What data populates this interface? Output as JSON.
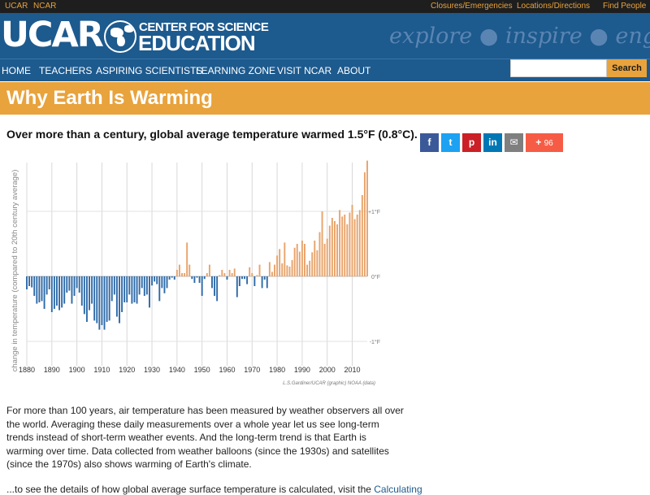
{
  "topbar": {
    "links": [
      "UCAR",
      "NCAR"
    ],
    "right_links": [
      "Closures/Emergencies",
      "Locations/Directions",
      "Find People"
    ]
  },
  "brand": {
    "ucar": "UCAR",
    "line1": "CENTER FOR SCIENCE",
    "line2": "EDUCATION",
    "tagline": "explore ● inspire ● engage"
  },
  "nav": {
    "items": [
      "HOME",
      "TEACHERS",
      "ASPIRING SCIENTISTS",
      "LEARNING ZONE",
      "VISIT NCAR",
      "ABOUT"
    ],
    "search_value": "",
    "search_label": "Search"
  },
  "page": {
    "title": "Why Earth Is Warming",
    "subtitle": "Over more than a century, global average temperature warmed 1.5°F (0.8°C).",
    "paragraph": "For more than 100 years, air temperature has been measured by weather observers all over the world. Averaging these daily measurements over a whole year let us see long-term trends instead of short-term weather events.  And the long-term trend is that Earth is warming over time. Data collected from weather balloons (since the 1930s) and satellites (since the 1970s) also shows warming of Earth's climate.",
    "paragraph2_start": "...to see the details of how global average surface temperature is calculated, visit the ",
    "paragraph2_link": "Calculating"
  },
  "share": {
    "buttons": [
      {
        "icon": "facebook-icon",
        "glyph": "f",
        "color": "#3b5998"
      },
      {
        "icon": "twitter-icon",
        "glyph": "t",
        "color": "#1da1f2"
      },
      {
        "icon": "pinterest-icon",
        "glyph": "p",
        "color": "#cb2027"
      },
      {
        "icon": "linkedin-icon",
        "glyph": "in",
        "color": "#0077b5"
      },
      {
        "icon": "email-icon",
        "glyph": "✉",
        "color": "#7f7f7f"
      }
    ],
    "more_glyph": "+",
    "count": "96",
    "more_color": "#f65c45"
  },
  "chart_data": {
    "type": "bar",
    "ylabel": "change in temperature (compared to 20th century average)",
    "xlabel": "",
    "x_ticks": [
      "1880",
      "1890",
      "1900",
      "1910",
      "1920",
      "1930",
      "1940",
      "1950",
      "1960",
      "1970",
      "1980",
      "1990",
      "2000",
      "2010"
    ],
    "y_ticks": [
      "+1°F",
      "0°F",
      "-1°F"
    ],
    "y_tick_values": [
      1,
      0,
      -1
    ],
    "ylim": [
      -1.3,
      1.8
    ],
    "x_range": [
      1880,
      2016
    ],
    "credit": "L.S.Gardiner/UCAR (graphic) NOAA (data)",
    "colors": {
      "positive": "#e8a36a",
      "negative": "#2e6aa8"
    },
    "years": [
      1880,
      1881,
      1882,
      1883,
      1884,
      1885,
      1886,
      1887,
      1888,
      1889,
      1890,
      1891,
      1892,
      1893,
      1894,
      1895,
      1896,
      1897,
      1898,
      1899,
      1900,
      1901,
      1902,
      1903,
      1904,
      1905,
      1906,
      1907,
      1908,
      1909,
      1910,
      1911,
      1912,
      1913,
      1914,
      1915,
      1916,
      1917,
      1918,
      1919,
      1920,
      1921,
      1922,
      1923,
      1924,
      1925,
      1926,
      1927,
      1928,
      1929,
      1930,
      1931,
      1932,
      1933,
      1934,
      1935,
      1936,
      1937,
      1938,
      1939,
      1940,
      1941,
      1942,
      1943,
      1944,
      1945,
      1946,
      1947,
      1948,
      1949,
      1950,
      1951,
      1952,
      1953,
      1954,
      1955,
      1956,
      1957,
      1958,
      1959,
      1960,
      1961,
      1962,
      1963,
      1964,
      1965,
      1966,
      1967,
      1968,
      1969,
      1970,
      1971,
      1972,
      1973,
      1974,
      1975,
      1976,
      1977,
      1978,
      1979,
      1980,
      1981,
      1982,
      1983,
      1984,
      1985,
      1986,
      1987,
      1988,
      1989,
      1990,
      1991,
      1992,
      1993,
      1994,
      1995,
      1996,
      1997,
      1998,
      1999,
      2000,
      2001,
      2002,
      2003,
      2004,
      2005,
      2006,
      2007,
      2008,
      2009,
      2010,
      2011,
      2012,
      2013,
      2014,
      2015,
      2016
    ],
    "values": [
      -0.2,
      -0.15,
      -0.17,
      -0.3,
      -0.42,
      -0.4,
      -0.38,
      -0.5,
      -0.28,
      -0.2,
      -0.55,
      -0.5,
      -0.45,
      -0.52,
      -0.48,
      -0.42,
      -0.25,
      -0.22,
      -0.42,
      -0.3,
      -0.18,
      -0.25,
      -0.45,
      -0.58,
      -0.7,
      -0.52,
      -0.42,
      -0.68,
      -0.72,
      -0.82,
      -0.75,
      -0.82,
      -0.7,
      -0.68,
      -0.38,
      -0.28,
      -0.62,
      -0.72,
      -0.55,
      -0.4,
      -0.4,
      -0.28,
      -0.42,
      -0.4,
      -0.42,
      -0.28,
      -0.18,
      -0.3,
      -0.28,
      -0.48,
      -0.14,
      -0.08,
      -0.12,
      -0.38,
      -0.18,
      -0.26,
      -0.18,
      -0.05,
      -0.02,
      -0.05,
      0.1,
      0.18,
      0.05,
      0.05,
      0.52,
      0.18,
      -0.04,
      -0.1,
      -0.02,
      -0.1,
      -0.3,
      -0.04,
      0.05,
      0.18,
      -0.18,
      -0.3,
      -0.38,
      0.02,
      0.1,
      0.05,
      -0.05,
      0.1,
      0.05,
      0.12,
      -0.32,
      -0.15,
      -0.04,
      -0.04,
      -0.12,
      0.14,
      0.05,
      -0.15,
      0.02,
      0.18,
      -0.18,
      -0.05,
      -0.18,
      0.22,
      0.07,
      0.18,
      0.32,
      0.42,
      0.2,
      0.52,
      0.17,
      0.15,
      0.25,
      0.44,
      0.5,
      0.38,
      0.55,
      0.5,
      0.18,
      0.24,
      0.37,
      0.55,
      0.4,
      0.68,
      1.0,
      0.5,
      0.58,
      0.78,
      0.9,
      0.85,
      0.8,
      1.02,
      0.92,
      0.95,
      0.8,
      0.98,
      1.1,
      0.88,
      0.95,
      1.02,
      1.25,
      1.6,
      1.78
    ]
  }
}
